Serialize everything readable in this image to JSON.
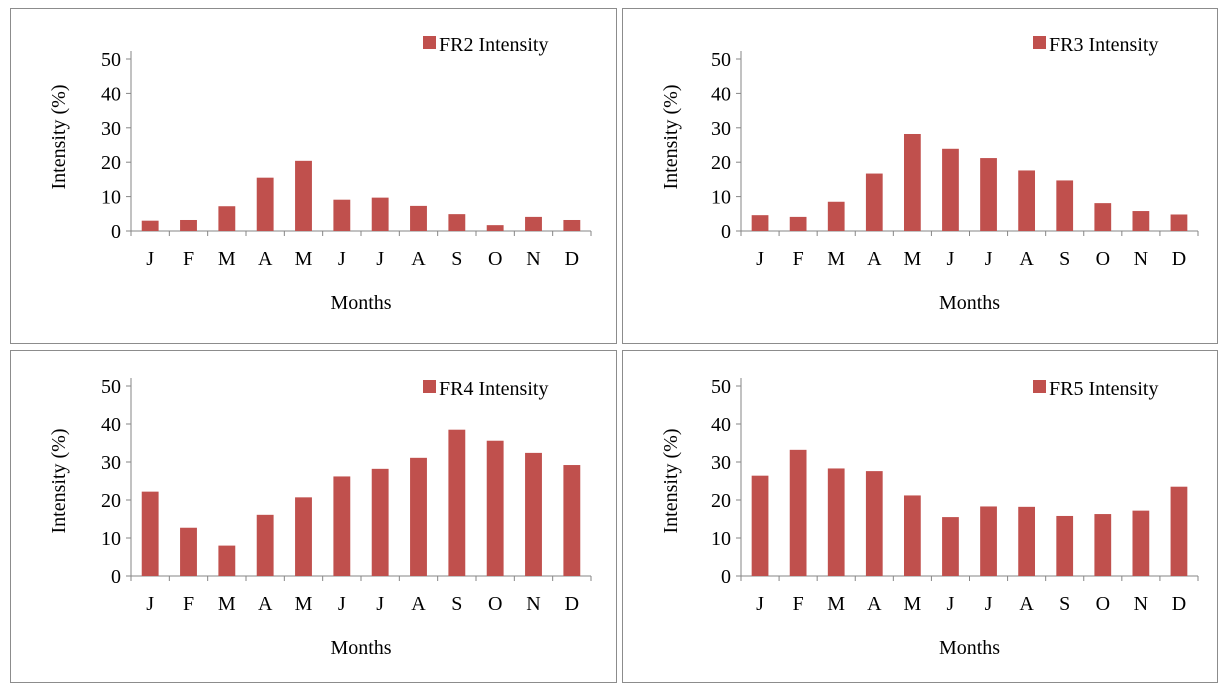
{
  "bar_color": "#c0504d",
  "chart_data": [
    {
      "type": "bar",
      "categories": [
        "J",
        "F",
        "M",
        "A",
        "M",
        "J",
        "J",
        "A",
        "S",
        "O",
        "N",
        "D"
      ],
      "series": [
        {
          "name": "FR2 Intensity",
          "values": [
            3,
            3.2,
            7.2,
            15.5,
            20.4,
            9.1,
            9.7,
            7.3,
            4.9,
            1.7,
            4.1,
            3.2
          ]
        }
      ],
      "xlabel": "Months",
      "ylabel": "Intensity (%)",
      "ylim": [
        0,
        50
      ],
      "yticks": [
        0,
        10,
        20,
        30,
        40,
        50
      ],
      "legend": "top-right",
      "grid": false
    },
    {
      "type": "bar",
      "categories": [
        "J",
        "F",
        "M",
        "A",
        "M",
        "J",
        "J",
        "A",
        "S",
        "O",
        "N",
        "D"
      ],
      "series": [
        {
          "name": "FR3 Intensity",
          "values": [
            4.6,
            4.1,
            8.5,
            16.7,
            28.2,
            23.9,
            21.2,
            17.6,
            14.7,
            8.1,
            5.8,
            4.8
          ]
        }
      ],
      "xlabel": "Months",
      "ylabel": "Intensity (%)",
      "ylim": [
        0,
        50
      ],
      "yticks": [
        0,
        10,
        20,
        30,
        40,
        50
      ],
      "legend": "top-right",
      "grid": false
    },
    {
      "type": "bar",
      "categories": [
        "J",
        "F",
        "M",
        "A",
        "M",
        "J",
        "J",
        "A",
        "S",
        "O",
        "N",
        "D"
      ],
      "series": [
        {
          "name": "FR4 Intensity",
          "values": [
            22.2,
            12.7,
            8,
            16.1,
            20.7,
            26.2,
            28.2,
            31.1,
            38.5,
            35.6,
            32.4,
            29.2
          ]
        }
      ],
      "xlabel": "Months",
      "ylabel": "Intensity (%)",
      "ylim": [
        0,
        50
      ],
      "yticks": [
        0,
        10,
        20,
        30,
        40,
        50
      ],
      "legend": "top-right",
      "grid": false
    },
    {
      "type": "bar",
      "categories": [
        "J",
        "F",
        "M",
        "A",
        "M",
        "J",
        "J",
        "A",
        "S",
        "O",
        "N",
        "D"
      ],
      "series": [
        {
          "name": "FR5 Intensity",
          "values": [
            26.4,
            33.2,
            28.3,
            27.6,
            21.2,
            15.5,
            18.3,
            18.2,
            15.8,
            16.3,
            17.2,
            23.5
          ]
        }
      ],
      "xlabel": "Months",
      "ylabel": "Intensity (%)",
      "ylim": [
        0,
        50
      ],
      "yticks": [
        0,
        10,
        20,
        30,
        40,
        50
      ],
      "legend": "top-right",
      "grid": false
    }
  ]
}
